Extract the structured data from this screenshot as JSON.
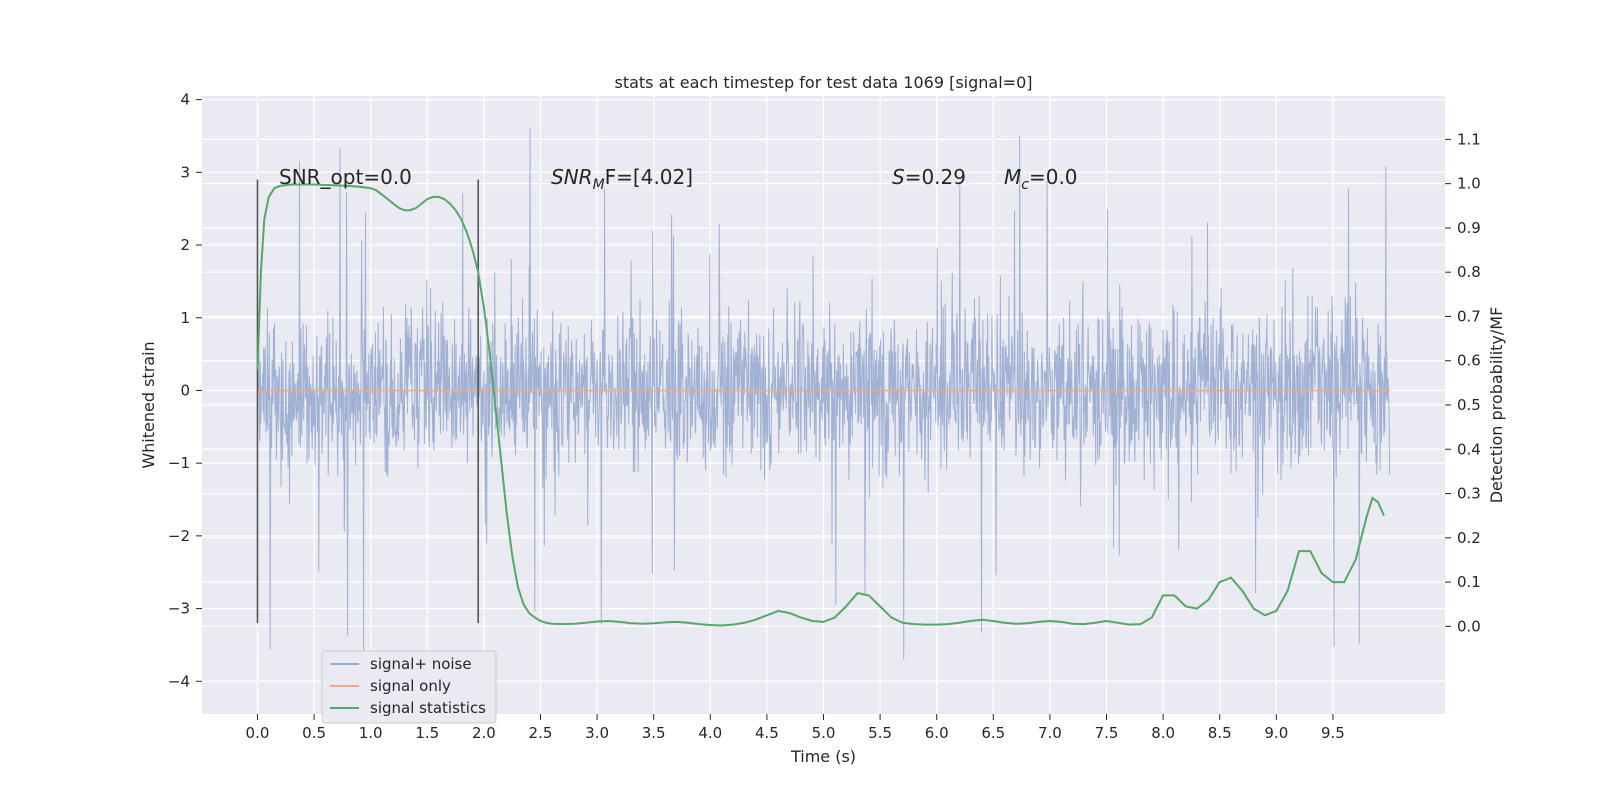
{
  "chart_data": {
    "type": "line",
    "title": "stats at each timestep for test data 1069 [signal=0]",
    "xlabel": "Time (s)",
    "ylabel_left": "Whitened strain",
    "ylabel_right": "Detection probability/MF",
    "x_ticks": [
      "0.0",
      "0.5",
      "1.0",
      "1.5",
      "2.0",
      "2.5",
      "3.0",
      "3.5",
      "4.0",
      "4.5",
      "5.0",
      "5.5",
      "6.0",
      "6.5",
      "7.0",
      "7.5",
      "8.0",
      "8.5",
      "9.0",
      "9.5"
    ],
    "x_tick_values": [
      0,
      0.5,
      1,
      1.5,
      2,
      2.5,
      3,
      3.5,
      4,
      4.5,
      5,
      5.5,
      6,
      6.5,
      7,
      7.5,
      8,
      8.5,
      9,
      9.5
    ],
    "y_left_ticks": [
      "4",
      "3",
      "2",
      "1",
      "0",
      "−1",
      "−2",
      "−3",
      "−4"
    ],
    "y_left_tick_values": [
      4,
      3,
      2,
      1,
      0,
      -1,
      -2,
      -3,
      -4
    ],
    "y_right_ticks": [
      "1.1",
      "1.0",
      "0.9",
      "0.8",
      "0.7",
      "0.6",
      "0.5",
      "0.4",
      "0.3",
      "0.2",
      "0.1",
      "0.0"
    ],
    "y_right_tick_values": [
      1.1,
      1.0,
      0.9,
      0.8,
      0.7,
      0.6,
      0.5,
      0.4,
      0.3,
      0.2,
      0.1,
      0.0
    ],
    "xlim": [
      -0.49,
      10.49
    ],
    "ylim_left": [
      -4.45,
      4.05
    ],
    "ylim_right": [
      -0.198,
      1.198
    ],
    "grid": true,
    "legend_position": "lower-left",
    "annotations": {
      "snr_opt": "SNR_opt=0.0",
      "snr_mf_italic": "SNR",
      "snr_mf_sub": "M",
      "snr_mf_rest": "F=[4.02]",
      "s_italic": "S",
      "s_rest": "=0.29",
      "mc_italic": "M",
      "mc_sub": "c",
      "mc_rest": "=0.0"
    },
    "vertical_markers": [
      0.0,
      1.95
    ],
    "vertical_marker_range": [
      -3.2,
      2.9
    ],
    "series": [
      {
        "name": "signal+ noise",
        "color": "#99abd0",
        "axis": "left",
        "x_range": [
          0,
          10
        ],
        "typical_amplitude": 1.7,
        "peak_amplitude": 3.7,
        "min_value": -4.05
      },
      {
        "name": "signal only",
        "color": "#e8a98e",
        "axis": "left",
        "x": [
          0,
          10
        ],
        "y": [
          0,
          0
        ]
      },
      {
        "name": "signal statistics",
        "color": "#55a868",
        "axis": "right",
        "x": [
          0.0,
          0.03,
          0.06,
          0.1,
          0.15,
          0.2,
          0.3,
          0.4,
          0.5,
          0.6,
          0.7,
          0.8,
          0.9,
          1.0,
          1.05,
          1.1,
          1.15,
          1.2,
          1.25,
          1.3,
          1.35,
          1.4,
          1.45,
          1.5,
          1.55,
          1.6,
          1.65,
          1.7,
          1.75,
          1.8,
          1.85,
          1.9,
          1.95,
          2.0,
          2.05,
          2.1,
          2.15,
          2.2,
          2.25,
          2.3,
          2.35,
          2.4,
          2.45,
          2.5,
          2.55,
          2.6,
          2.7,
          2.8,
          2.9,
          3.0,
          3.1,
          3.2,
          3.3,
          3.4,
          3.5,
          3.6,
          3.7,
          3.8,
          3.9,
          4.0,
          4.1,
          4.2,
          4.3,
          4.4,
          4.5,
          4.6,
          4.7,
          4.8,
          4.9,
          5.0,
          5.1,
          5.2,
          5.3,
          5.4,
          5.5,
          5.6,
          5.7,
          5.8,
          5.9,
          6.0,
          6.1,
          6.2,
          6.3,
          6.4,
          6.5,
          6.6,
          6.7,
          6.8,
          6.9,
          7.0,
          7.1,
          7.2,
          7.3,
          7.4,
          7.5,
          7.6,
          7.7,
          7.8,
          7.9,
          8.0,
          8.1,
          8.2,
          8.3,
          8.4,
          8.5,
          8.6,
          8.7,
          8.8,
          8.9,
          9.0,
          9.1,
          9.2,
          9.3,
          9.4,
          9.5,
          9.6,
          9.7,
          9.8,
          9.85,
          9.9,
          9.95
        ],
        "y": [
          0.58,
          0.8,
          0.92,
          0.97,
          0.99,
          0.995,
          0.998,
          0.998,
          0.998,
          0.997,
          0.996,
          0.995,
          0.993,
          0.99,
          0.985,
          0.975,
          0.965,
          0.955,
          0.945,
          0.94,
          0.94,
          0.945,
          0.955,
          0.965,
          0.97,
          0.97,
          0.965,
          0.955,
          0.94,
          0.92,
          0.89,
          0.85,
          0.8,
          0.72,
          0.62,
          0.5,
          0.38,
          0.26,
          0.16,
          0.09,
          0.05,
          0.03,
          0.02,
          0.012,
          0.008,
          0.006,
          0.005,
          0.006,
          0.008,
          0.011,
          0.012,
          0.01,
          0.007,
          0.006,
          0.007,
          0.009,
          0.01,
          0.008,
          0.005,
          0.003,
          0.002,
          0.004,
          0.008,
          0.015,
          0.025,
          0.035,
          0.03,
          0.02,
          0.012,
          0.01,
          0.02,
          0.045,
          0.075,
          0.07,
          0.045,
          0.02,
          0.008,
          0.005,
          0.004,
          0.004,
          0.005,
          0.008,
          0.012,
          0.015,
          0.012,
          0.008,
          0.006,
          0.007,
          0.01,
          0.012,
          0.01,
          0.006,
          0.005,
          0.008,
          0.012,
          0.008,
          0.004,
          0.005,
          0.02,
          0.07,
          0.07,
          0.045,
          0.04,
          0.06,
          0.1,
          0.11,
          0.08,
          0.04,
          0.025,
          0.035,
          0.08,
          0.17,
          0.17,
          0.12,
          0.1,
          0.1,
          0.15,
          0.25,
          0.29,
          0.28,
          0.25
        ]
      }
    ]
  }
}
